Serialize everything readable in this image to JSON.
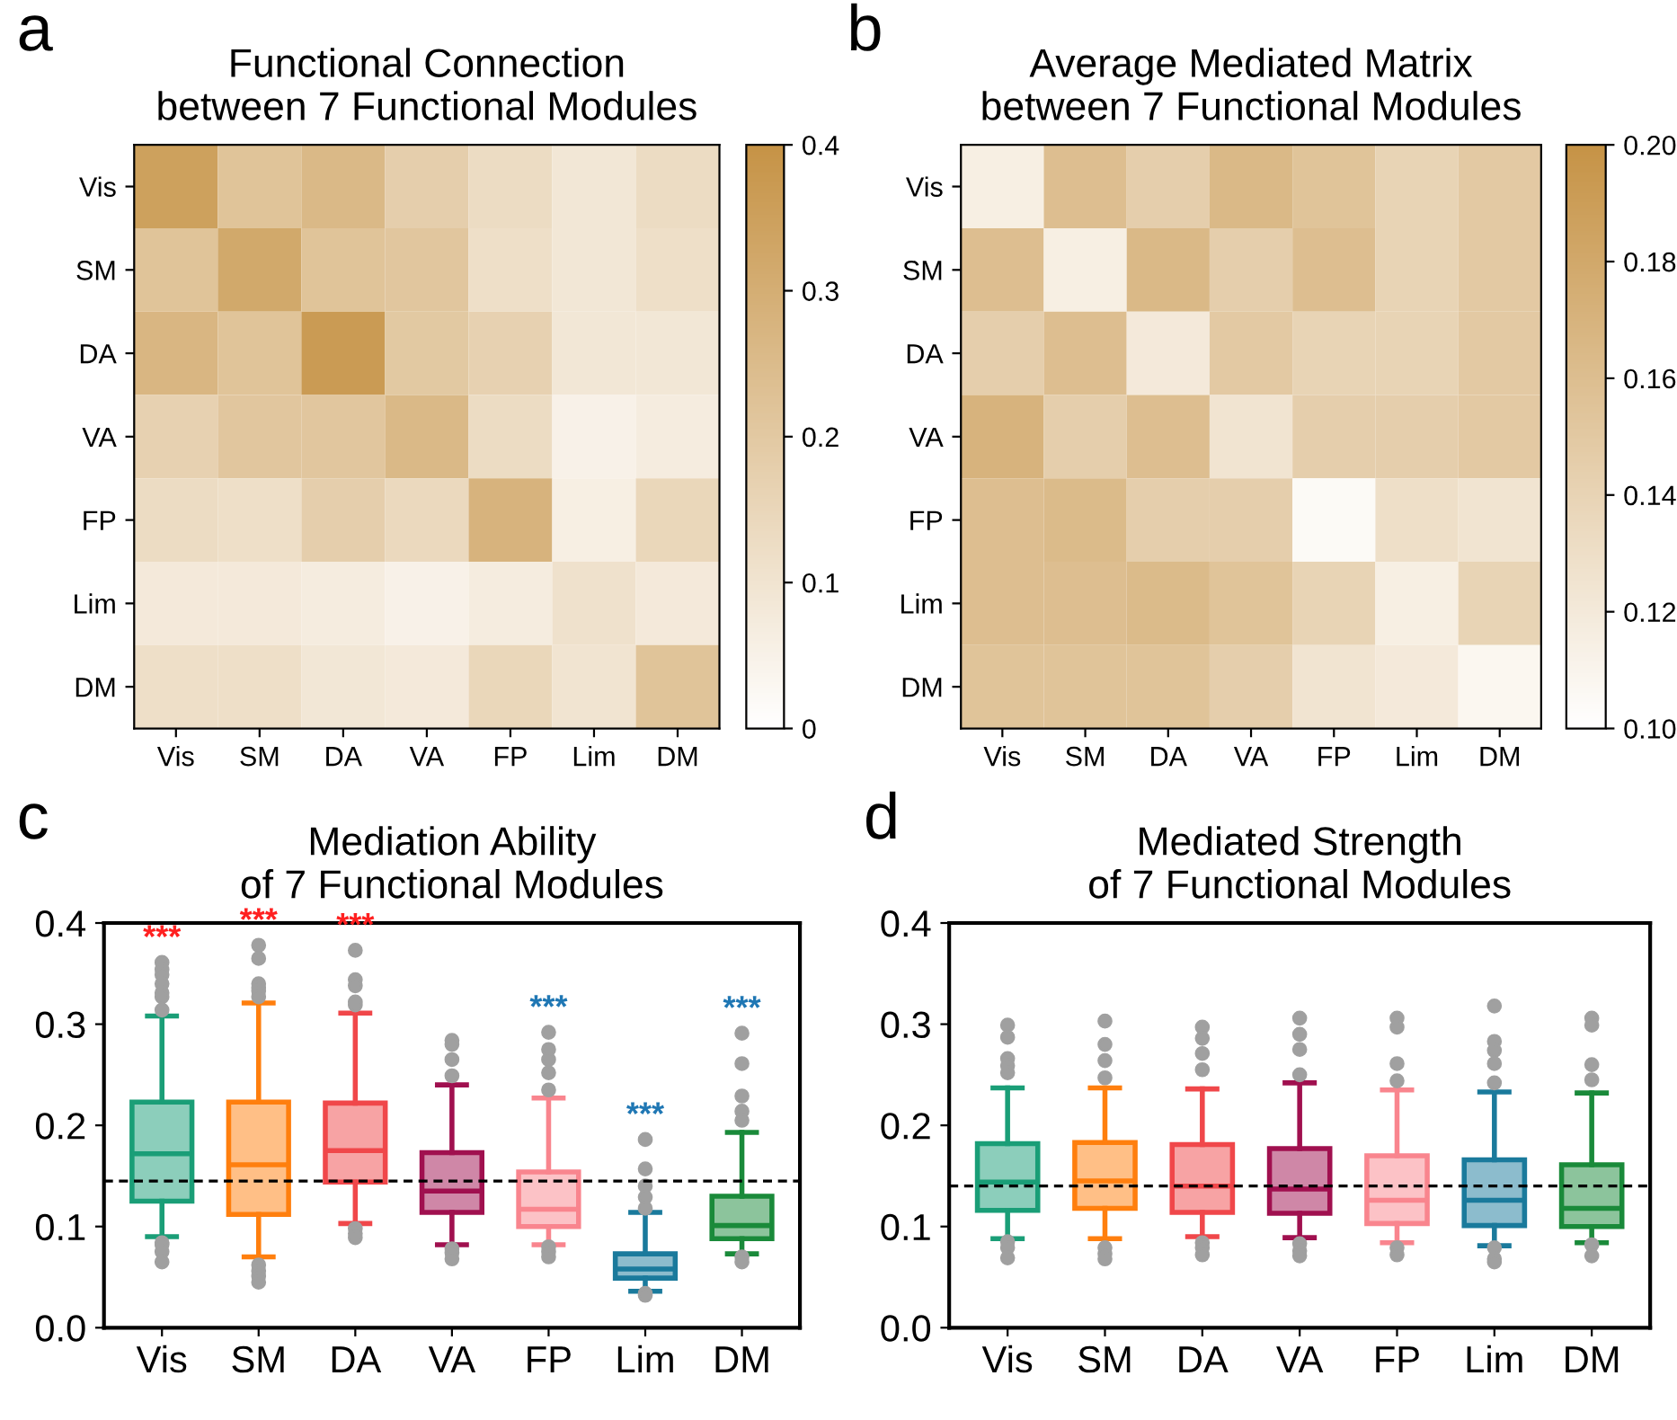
{
  "chart_data": [
    {
      "type": "heatmap",
      "title": "Functional Connection\nbetween 7 Functional Modules",
      "categories": [
        "Vis",
        "SM",
        "DA",
        "VA",
        "FP",
        "Lim",
        "DM"
      ],
      "y_categories": [
        "Vis",
        "SM",
        "DA",
        "VA",
        "FP",
        "Lim",
        "DM"
      ],
      "cells": [
        [
          0.35,
          0.22,
          0.26,
          0.18,
          0.13,
          0.09,
          0.13
        ],
        [
          0.22,
          0.32,
          0.22,
          0.21,
          0.12,
          0.09,
          0.12
        ],
        [
          0.27,
          0.22,
          0.37,
          0.2,
          0.17,
          0.09,
          0.09
        ],
        [
          0.17,
          0.21,
          0.21,
          0.26,
          0.13,
          0.05,
          0.07
        ],
        [
          0.13,
          0.12,
          0.18,
          0.14,
          0.28,
          0.06,
          0.15
        ],
        [
          0.08,
          0.08,
          0.07,
          0.05,
          0.07,
          0.11,
          0.08
        ],
        [
          0.12,
          0.12,
          0.09,
          0.08,
          0.15,
          0.1,
          0.22
        ]
      ],
      "clim": [
        0,
        0.4
      ],
      "cticks": [
        0,
        0.1,
        0.2,
        0.3,
        0.4
      ],
      "colors": [
        "#ffffff",
        "#c69346"
      ],
      "annotations": [
        "a"
      ]
    },
    {
      "type": "heatmap",
      "title": "Average Mediated Matrix\nbetween 7 Functional Modules",
      "categories": [
        "Vis",
        "SM",
        "DA",
        "VA",
        "FP",
        "Lim",
        "DM"
      ],
      "y_categories": [
        "Vis",
        "SM",
        "DA",
        "VA",
        "FP",
        "Lim",
        "DM"
      ],
      "cells": [
        [
          0.115,
          0.16,
          0.145,
          0.165,
          0.155,
          0.14,
          0.15
        ],
        [
          0.16,
          0.115,
          0.165,
          0.145,
          0.16,
          0.14,
          0.15
        ],
        [
          0.145,
          0.16,
          0.12,
          0.15,
          0.14,
          0.14,
          0.15
        ],
        [
          0.17,
          0.145,
          0.16,
          0.125,
          0.145,
          0.145,
          0.15
        ],
        [
          0.16,
          0.163,
          0.145,
          0.145,
          0.105,
          0.13,
          0.125
        ],
        [
          0.16,
          0.16,
          0.163,
          0.155,
          0.14,
          0.115,
          0.14
        ],
        [
          0.155,
          0.155,
          0.155,
          0.145,
          0.125,
          0.12,
          0.108
        ]
      ],
      "clim": [
        0.1,
        0.2
      ],
      "cticks": [
        {
          "value": 0.1,
          "label": "0.10"
        },
        {
          "value": 0.12,
          "label": "0.12"
        },
        {
          "value": 0.14,
          "label": "0.14"
        },
        {
          "value": 0.16,
          "label": "0.16"
        },
        {
          "value": 0.18,
          "label": "0.18"
        },
        {
          "value": 0.2,
          "label": "0.20"
        }
      ],
      "colors": [
        "#ffffff",
        "#c69346"
      ],
      "annotations": [
        "b"
      ]
    },
    {
      "type": "box",
      "title": "Mediation Ability\nof 7 Functional Modules",
      "categories": [
        "Vis",
        "SM",
        "DA",
        "VA",
        "FP",
        "Lim",
        "DM"
      ],
      "colors": [
        "#1a9e77",
        "#ff7f0e",
        "#f0474a",
        "#a0104f",
        "#f9858e",
        "#1a7a9c",
        "#1a8a3a"
      ],
      "boxes": [
        {
          "low": 0.09,
          "q1": 0.125,
          "median": 0.172,
          "q3": 0.223,
          "high": 0.308,
          "outliers": [
            0.361,
            0.354,
            0.349,
            0.34,
            0.331,
            0.327,
            0.314,
            0.084,
            0.082,
            0.075,
            0.065
          ]
        },
        {
          "low": 0.07,
          "q1": 0.112,
          "median": 0.161,
          "q3": 0.223,
          "high": 0.321,
          "outliers": [
            0.378,
            0.365,
            0.34,
            0.336,
            0.333,
            0.327,
            0.062,
            0.056,
            0.051,
            0.045
          ]
        },
        {
          "low": 0.103,
          "q1": 0.144,
          "median": 0.175,
          "q3": 0.222,
          "high": 0.311,
          "outliers": [
            0.373,
            0.344,
            0.338,
            0.322,
            0.319,
            0.098,
            0.093,
            0.089
          ]
        },
        {
          "low": 0.082,
          "q1": 0.114,
          "median": 0.135,
          "q3": 0.173,
          "high": 0.24,
          "outliers": [
            0.284,
            0.28,
            0.265,
            0.249,
            0.078,
            0.074,
            0.068
          ]
        },
        {
          "low": 0.082,
          "q1": 0.1,
          "median": 0.117,
          "q3": 0.154,
          "high": 0.227,
          "outliers": [
            0.292,
            0.275,
            0.265,
            0.252,
            0.235,
            0.08,
            0.075,
            0.07
          ]
        },
        {
          "low": 0.036,
          "q1": 0.049,
          "median": 0.058,
          "q3": 0.073,
          "high": 0.114,
          "outliers": [
            0.186,
            0.157,
            0.14,
            0.129,
            0.118,
            0.034,
            0.032
          ]
        },
        {
          "low": 0.073,
          "q1": 0.088,
          "median": 0.101,
          "q3": 0.13,
          "high": 0.193,
          "outliers": [
            0.291,
            0.261,
            0.229,
            0.214,
            0.205,
            0.07,
            0.065
          ]
        }
      ],
      "ylim": [
        0,
        0.4
      ],
      "yticks": [
        {
          "value": 0,
          "label": "0.0"
        },
        0.1,
        0.2,
        0.3,
        0.4
      ],
      "ref_lines": [
        {
          "axis": "y",
          "value": 0.145,
          "label": null,
          "line_style": "dashed",
          "color": "#000000"
        }
      ],
      "value_labels": [
        "***",
        "***",
        "***",
        null,
        "***",
        "***",
        "***"
      ],
      "annotations": [
        "c"
      ]
    },
    {
      "type": "box",
      "title": "Mediated Strength\nof 7 Functional Modules",
      "categories": [
        "Vis",
        "SM",
        "DA",
        "VA",
        "FP",
        "Lim",
        "DM"
      ],
      "colors": [
        "#1a9e77",
        "#ff7f0e",
        "#f0474a",
        "#a0104f",
        "#f9858e",
        "#1a7a9c",
        "#1a8a3a"
      ],
      "boxes": [
        {
          "low": 0.088,
          "q1": 0.116,
          "median": 0.144,
          "q3": 0.182,
          "high": 0.237,
          "outliers": [
            0.299,
            0.287,
            0.266,
            0.259,
            0.252,
            0.085,
            0.079,
            0.069
          ]
        },
        {
          "low": 0.088,
          "q1": 0.118,
          "median": 0.145,
          "q3": 0.183,
          "high": 0.237,
          "outliers": [
            0.303,
            0.28,
            0.264,
            0.247,
            0.079,
            0.073,
            0.068
          ]
        },
        {
          "low": 0.09,
          "q1": 0.114,
          "median": 0.14,
          "q3": 0.181,
          "high": 0.236,
          "outliers": [
            0.297,
            0.286,
            0.271,
            0.255,
            0.084,
            0.079,
            0.072
          ]
        },
        {
          "low": 0.089,
          "q1": 0.113,
          "median": 0.137,
          "q3": 0.177,
          "high": 0.242,
          "outliers": [
            0.306,
            0.29,
            0.275,
            0.25,
            0.083,
            0.076,
            0.071
          ]
        },
        {
          "low": 0.084,
          "q1": 0.103,
          "median": 0.126,
          "q3": 0.17,
          "high": 0.235,
          "outliers": [
            0.306,
            0.297,
            0.261,
            0.244,
            0.079,
            0.072
          ]
        },
        {
          "low": 0.081,
          "q1": 0.101,
          "median": 0.126,
          "q3": 0.166,
          "high": 0.233,
          "outliers": [
            0.318,
            0.283,
            0.274,
            0.261,
            0.242,
            0.079,
            0.068,
            0.065
          ]
        },
        {
          "low": 0.084,
          "q1": 0.1,
          "median": 0.118,
          "q3": 0.161,
          "high": 0.232,
          "outliers": [
            0.306,
            0.299,
            0.26,
            0.245,
            0.082,
            0.071
          ]
        }
      ],
      "ylim": [
        0,
        0.4
      ],
      "yticks": [
        {
          "value": 0,
          "label": "0.0"
        },
        0.1,
        0.2,
        0.3,
        0.4
      ],
      "ref_lines": [
        {
          "axis": "y",
          "value": 0.14,
          "label": null,
          "line_style": "dashed",
          "color": "#000000"
        }
      ],
      "annotations": [
        "d"
      ]
    }
  ]
}
